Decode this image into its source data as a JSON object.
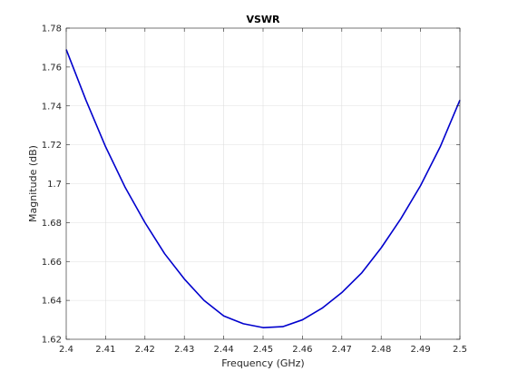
{
  "chart_data": {
    "type": "line",
    "title": "VSWR",
    "xlabel": "Frequency (GHz)",
    "ylabel": "Magnitude (dB)",
    "xlim": [
      2.4,
      2.5
    ],
    "ylim": [
      1.62,
      1.78
    ],
    "x_ticks": [
      2.4,
      2.41,
      2.42,
      2.43,
      2.44,
      2.45,
      2.46,
      2.47,
      2.48,
      2.49,
      2.5
    ],
    "x_tick_labels": [
      "2.4",
      "2.41",
      "2.42",
      "2.43",
      "2.44",
      "2.45",
      "2.46",
      "2.47",
      "2.48",
      "2.49",
      "2.5"
    ],
    "y_ticks": [
      1.62,
      1.64,
      1.66,
      1.68,
      1.7,
      1.72,
      1.74,
      1.76,
      1.78
    ],
    "y_tick_labels": [
      "1.62",
      "1.64",
      "1.66",
      "1.68",
      "1.7",
      "1.72",
      "1.74",
      "1.76",
      "1.78"
    ],
    "grid": true,
    "series": [
      {
        "color": "#0000cd",
        "x": [
          2.4,
          2.405,
          2.41,
          2.415,
          2.42,
          2.425,
          2.43,
          2.435,
          2.44,
          2.445,
          2.45,
          2.455,
          2.46,
          2.465,
          2.47,
          2.475,
          2.48,
          2.485,
          2.49,
          2.495,
          2.5
        ],
        "y": [
          1.769,
          1.743,
          1.719,
          1.698,
          1.68,
          1.664,
          1.651,
          1.64,
          1.632,
          1.628,
          1.626,
          1.6265,
          1.63,
          1.636,
          1.644,
          1.654,
          1.667,
          1.682,
          1.699,
          1.719,
          1.743
        ]
      }
    ]
  }
}
